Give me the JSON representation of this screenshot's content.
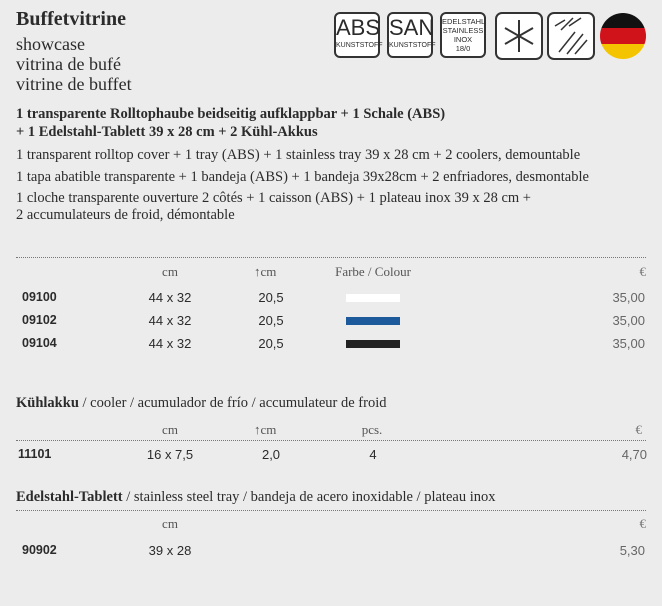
{
  "header": {
    "title": "Buffetvitrine",
    "subtitles": [
      "showcase",
      "vitrina de bufé",
      "vitrine de buffet"
    ]
  },
  "badges": [
    {
      "big": "ABS",
      "small": "KUNSTSTOFF"
    },
    {
      "big": "SAN",
      "small": "KUNSTSTOFF"
    },
    {
      "lines": [
        "EDELSTAHL",
        "STAINLESS",
        "INOX",
        "18/0"
      ]
    }
  ],
  "description": {
    "bold": [
      "1 transparente Rolltophaube beidseitig aufklappbar  + 1 Schale (ABS)",
      "+ 1 Edelstahl-Tablett 39 x 28 cm + 2 Kühl-Akkus"
    ],
    "lines": [
      "1 transparent rolltop cover + 1 tray (ABS) + 1 stainless tray 39 x 28 cm + 2 coolers, demountable",
      "1 tapa abatible transparente + 1 bandeja (ABS) + 1 bandeja 39x28cm + 2 enfriadores, desmontable",
      "1 cloche transparente ouverture 2 côtés + 1 caisson (ABS) + 1 plateau inox 39 x 28 cm +",
      "2 accumulateurs de froid, démontable"
    ]
  },
  "tables": [
    {
      "headers": [
        "cm",
        "cm",
        "Farbe / Colour",
        "€"
      ],
      "rows": [
        {
          "code": "09100",
          "size": "44 x 32",
          "height": "20,5",
          "color": "#ffffff",
          "price": "35,00"
        },
        {
          "code": "09102",
          "size": "44 x 32",
          "height": "20,5",
          "color": "#1d5a9c",
          "price": "35,00"
        },
        {
          "code": "09104",
          "size": "44 x 32",
          "height": "20,5",
          "color": "#222222",
          "price": "35,00"
        }
      ]
    },
    {
      "title_bold": "Kühlakku",
      "title_rest": " / cooler / acumulador de frío / accumulateur de froid",
      "headers": [
        "cm",
        "cm",
        "pcs.",
        "€"
      ],
      "rows": [
        {
          "code": "11101",
          "size": "16 x 7,5",
          "height": "2,0",
          "pcs": "4",
          "price": "4,70"
        }
      ]
    },
    {
      "title_bold": "Edelstahl-Tablett",
      "title_rest": " / stainless steel tray / bandeja de acero inoxidable / plateau inox",
      "headers": [
        "cm",
        "€"
      ],
      "rows": [
        {
          "code": "90902",
          "size": "39 x 28",
          "price": "5,30"
        }
      ]
    }
  ]
}
